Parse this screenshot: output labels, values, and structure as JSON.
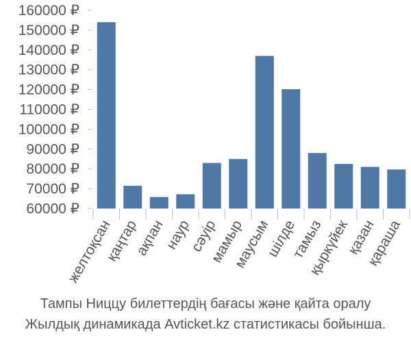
{
  "chart_data": {
    "type": "bar",
    "categories": [
      "желтоқсан",
      "қаңтар",
      "ақпан",
      "наур",
      "сәуір",
      "мамыр",
      "маусым",
      "шілде",
      "тамыз",
      "қыркүйек",
      "қазан",
      "қараша"
    ],
    "values": [
      154000,
      71500,
      65800,
      67200,
      83000,
      85000,
      137000,
      120200,
      88000,
      82500,
      81000,
      79700
    ],
    "y_ticks": [
      "60000 ₽",
      "70000 ₽",
      "80000 ₽",
      "90000 ₽",
      "100000 ₽",
      "110000 ₽",
      "120000 ₽",
      "130000 ₽",
      "140000 ₽",
      "150000 ₽",
      "160000 ₽"
    ],
    "ylim": [
      60000,
      160000
    ],
    "bar_color": "#4e79a7",
    "grid": false
  },
  "caption": {
    "line1": "Тампы Ниццу билеттердің бағасы және қайта оралу",
    "line2": "Жылдық динамикада Avticket.kz статистикасы бойынша."
  }
}
